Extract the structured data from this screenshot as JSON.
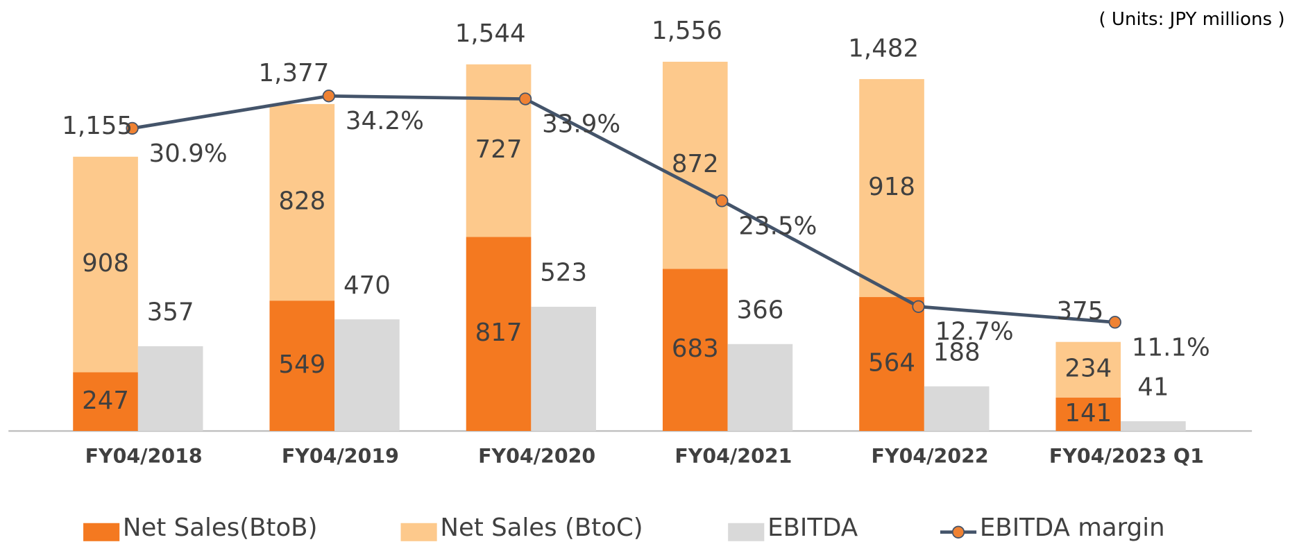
{
  "chart_data": {
    "type": "bar",
    "units": "( Units: JPY millions )",
    "categories": [
      "FY04/2018",
      "FY04/2019",
      "FY04/2020",
      "FY04/2021",
      "FY04/2022",
      "FY04/2023 Q1"
    ],
    "series": [
      {
        "name": "Net Sales(BtoB)",
        "color": "#f47920",
        "stack": "sales",
        "values": [
          247,
          549,
          817,
          683,
          564,
          141
        ]
      },
      {
        "name": "Net Sales (BtoC)",
        "color": "#fdc98c",
        "stack": "sales",
        "values": [
          908,
          828,
          727,
          872,
          918,
          234
        ]
      },
      {
        "name": "EBITDA",
        "color": "#d9d9d9",
        "values": [
          357,
          470,
          523,
          366,
          188,
          41
        ]
      },
      {
        "name": "EBITDA margin",
        "type": "line",
        "axis": "y2",
        "color": "#44546a",
        "marker_color": "#ef8233",
        "values": [
          30.9,
          34.2,
          33.9,
          23.5,
          12.7,
          11.1
        ],
        "value_labels": [
          "30.9%",
          "34.2%",
          "33.9%",
          "23.5%",
          "12.7%",
          "11.1%"
        ]
      }
    ],
    "total_values": [
      1155,
      1377,
      1544,
      1556,
      1482,
      375
    ],
    "total_labels": [
      "1,155",
      "1,377",
      "1,544",
      "1,556",
      "1,482",
      "375"
    ],
    "ylim": [
      0,
      1815
    ],
    "y2lim": [
      0,
      44
    ],
    "legend": "bottom"
  }
}
